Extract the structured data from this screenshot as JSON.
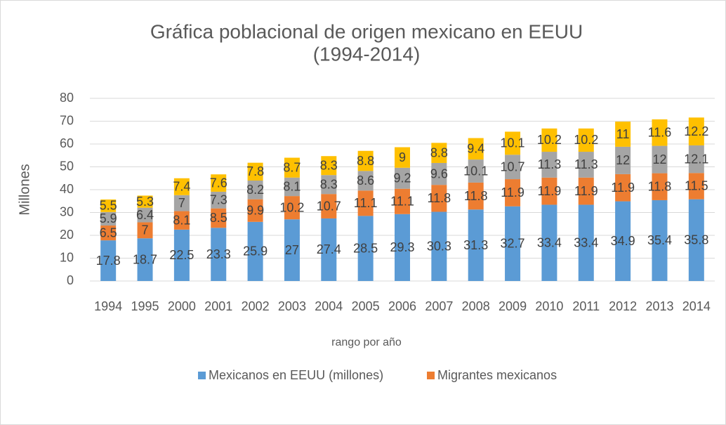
{
  "chart_data": {
    "type": "stacked_bar",
    "title": [
      "Gráfica poblacional de origen mexicano en EEUU",
      "(1994-2014)"
    ],
    "y_label": "Millones",
    "x_label": "rango por año",
    "categories": [
      "1994",
      "1995",
      "2000",
      "2001",
      "2002",
      "2003",
      "2004",
      "2005",
      "2006",
      "2007",
      "2008",
      "2009",
      "2010",
      "2011",
      "2012",
      "2013",
      "2014"
    ],
    "series": [
      {
        "name": "Mexicanos en EEUU (millones)",
        "color": "#5b9bd5",
        "values": [
          17.8,
          18.7,
          22.5,
          23.3,
          25.9,
          27,
          27.4,
          28.5,
          29.3,
          30.3,
          31.3,
          32.7,
          33.4,
          33.4,
          34.9,
          35.4,
          35.8
        ]
      },
      {
        "name": "Migrantes mexicanos",
        "color": "#ed7d31",
        "values": [
          6.5,
          7,
          8.1,
          8.5,
          9.9,
          10.2,
          10.7,
          11.1,
          11.1,
          11.8,
          11.8,
          11.9,
          11.9,
          11.9,
          11.9,
          11.8,
          11.5
        ]
      },
      {
        "color": "#a5a5a5",
        "values": [
          5.9,
          6.4,
          7,
          7.3,
          8.2,
          8.1,
          8.3,
          8.6,
          9.2,
          9.6,
          10.1,
          10.7,
          11.3,
          11.3,
          12,
          12,
          12.1
        ]
      },
      {
        "color": "#ffc000",
        "values": [
          5.5,
          5.3,
          7.4,
          7.6,
          7.8,
          8.7,
          8.3,
          8.8,
          9,
          8.8,
          9.4,
          10.1,
          10.2,
          10.2,
          11,
          11.6,
          12.2
        ]
      }
    ],
    "ylim": [
      0,
      80
    ],
    "yticks": [
      0,
      10,
      20,
      30,
      40,
      50,
      60,
      70,
      80
    ],
    "grid": true,
    "legend": "bottom"
  }
}
